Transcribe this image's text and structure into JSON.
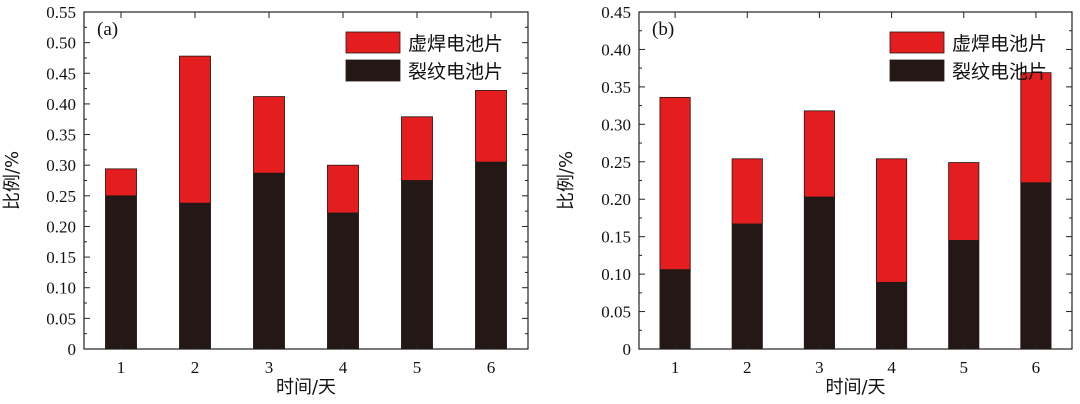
{
  "chart_data": [
    {
      "type": "bar",
      "stacked": true,
      "panel_label": "(a)",
      "categories": [
        "1",
        "2",
        "3",
        "4",
        "5",
        "6"
      ],
      "series": [
        {
          "name": "裂纹电池片",
          "values": [
            0.25,
            0.238,
            0.287,
            0.222,
            0.275,
            0.305
          ],
          "color": "#231815"
        },
        {
          "name": "虚焊电池片",
          "values": [
            0.044,
            0.24,
            0.125,
            0.078,
            0.104,
            0.117
          ],
          "color": "#e41e1e"
        }
      ],
      "ylabel": "比例/%",
      "xlabel": "时间/天",
      "ylim": [
        0,
        0.55
      ],
      "yticks": [
        "0",
        "0.05",
        "0.10",
        "0.15",
        "0.20",
        "0.25",
        "0.30",
        "0.35",
        "0.40",
        "0.45",
        "0.50",
        "0.55"
      ],
      "legend_position": "top-right",
      "grid": false
    },
    {
      "type": "bar",
      "stacked": true,
      "panel_label": "(b)",
      "categories": [
        "1",
        "2",
        "3",
        "4",
        "5",
        "6"
      ],
      "series": [
        {
          "name": "裂纹电池片",
          "values": [
            0.106,
            0.167,
            0.203,
            0.089,
            0.145,
            0.222
          ],
          "color": "#231815"
        },
        {
          "name": "虚焊电池片",
          "values": [
            0.23,
            0.087,
            0.115,
            0.165,
            0.104,
            0.147
          ],
          "color": "#e41e1e"
        }
      ],
      "ylabel": "比例/%",
      "xlabel": "时间/天",
      "ylim": [
        0,
        0.45
      ],
      "yticks": [
        "0",
        "0.05",
        "0.10",
        "0.15",
        "0.20",
        "0.25",
        "0.30",
        "0.35",
        "0.40",
        "0.45"
      ],
      "legend_position": "top-right",
      "grid": false
    }
  ]
}
